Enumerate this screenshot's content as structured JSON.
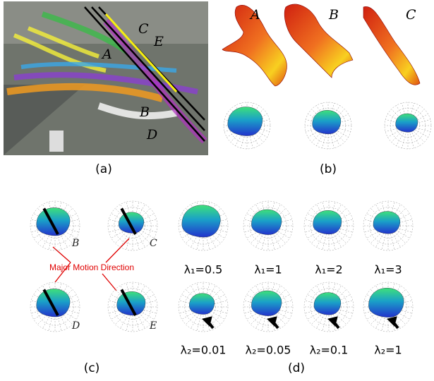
{
  "panels": {
    "a": {
      "caption": "(a)",
      "labels": [
        "A",
        "C",
        "E",
        "B",
        "D"
      ]
    },
    "b": {
      "caption": "(b)",
      "labels": [
        "A",
        "B",
        "C"
      ]
    },
    "c": {
      "caption": "(c)",
      "labels": [
        "B",
        "C",
        "D",
        "E"
      ],
      "annotation": "Major Motion Direction"
    },
    "d": {
      "caption": "(d)",
      "row1": [
        "λ₁=0.5",
        "λ₁=1",
        "λ₁=2",
        "λ₁=3"
      ],
      "row2": [
        "λ₂=0.01",
        "λ₂=0.05",
        "λ₂=0.1",
        "λ₂=1"
      ]
    }
  }
}
